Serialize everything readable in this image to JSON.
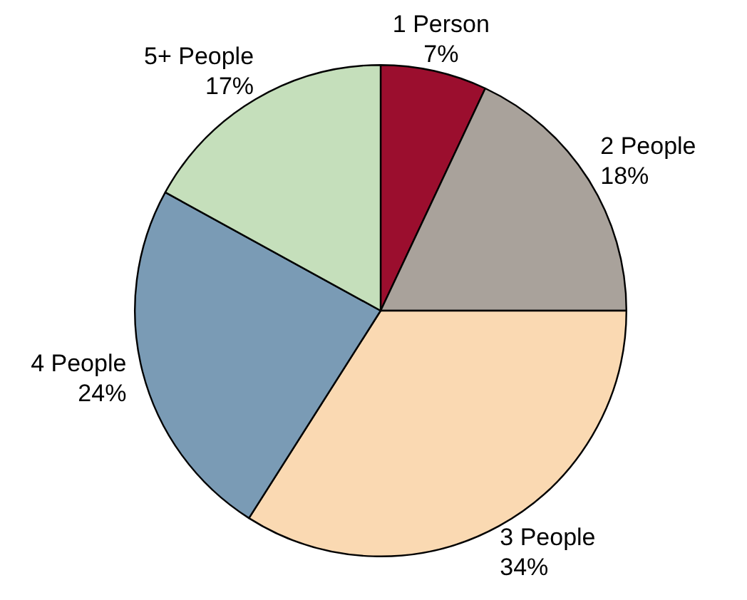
{
  "chart_data": {
    "type": "pie",
    "categories": [
      "1 Person",
      "2 People",
      "3 People",
      "4 People",
      "5+ People"
    ],
    "values": [
      7,
      18,
      34,
      24,
      17
    ],
    "value_labels": [
      "7%",
      "18%",
      "34%",
      "24%",
      "17%"
    ],
    "colors": [
      "#9b0e2e",
      "#a9a29b",
      "#fad9b2",
      "#7a9bb5",
      "#c5dfbb"
    ],
    "legend": false
  }
}
